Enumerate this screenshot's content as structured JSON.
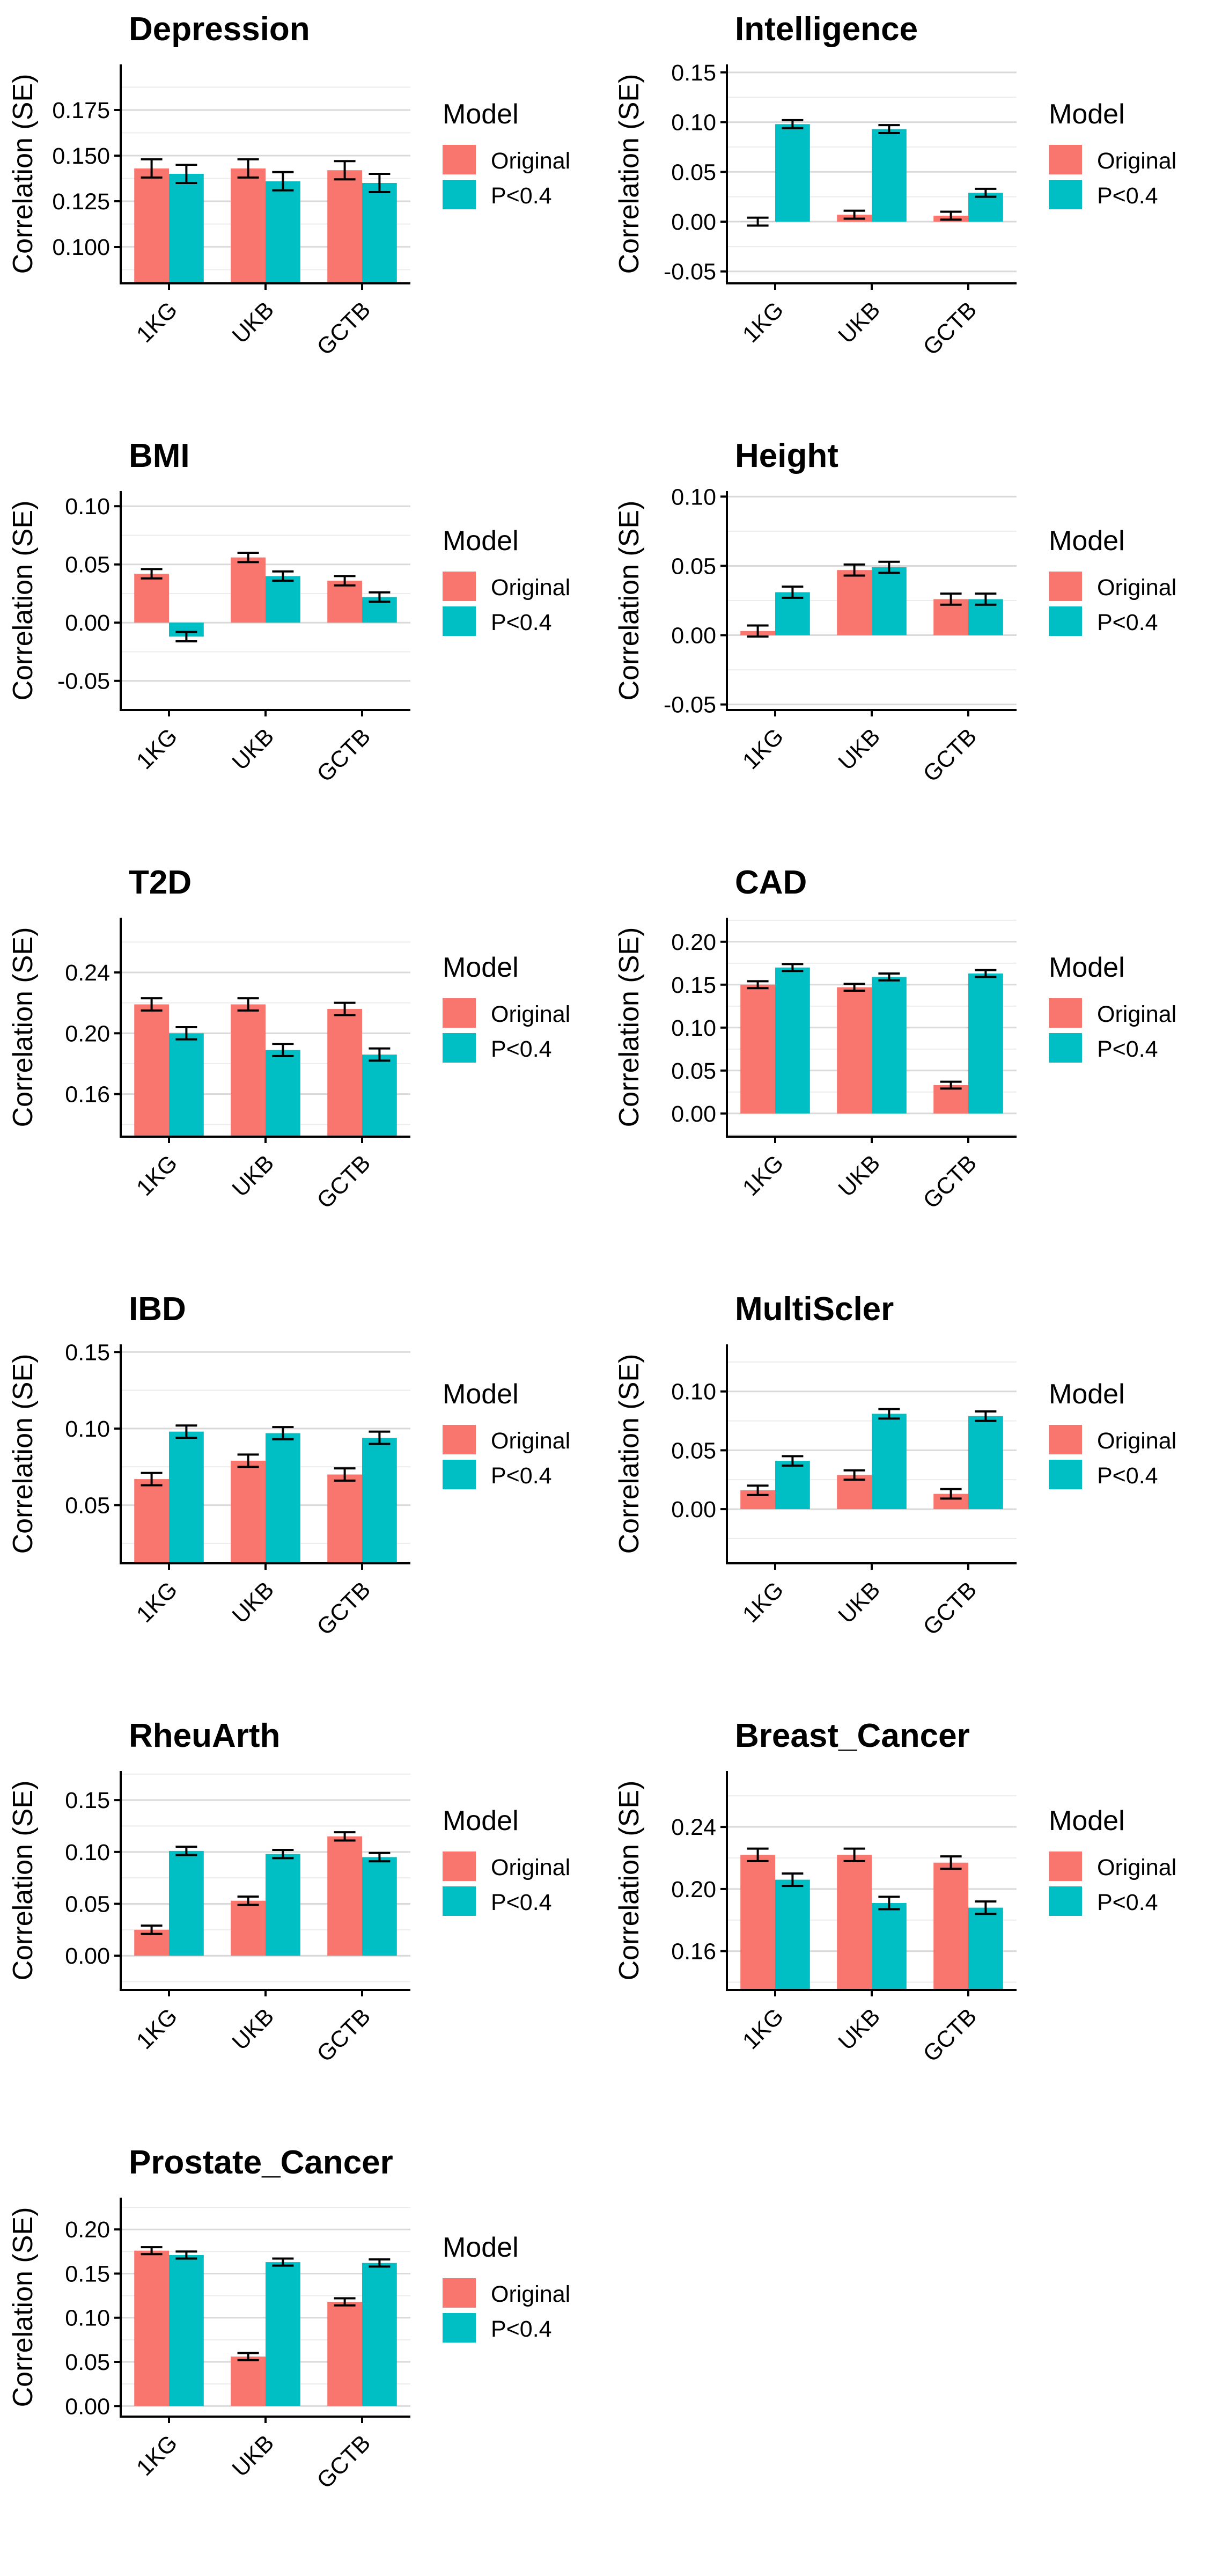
{
  "legend": {
    "title": "Model",
    "items": [
      "Original",
      "P<0.4"
    ]
  },
  "colors": {
    "original": "#F8766D",
    "p04": "#00BFC4",
    "grid": "#d9d9d9",
    "axis": "#000000"
  },
  "chart_data": [
    {
      "type": "bar",
      "title": "Depression",
      "ylabel": "Correlation (SE)",
      "categories": [
        "1KG",
        "UKB",
        "GCTB"
      ],
      "series": [
        {
          "name": "Original",
          "values": [
            0.143,
            0.143,
            0.142
          ],
          "se": [
            0.005,
            0.005,
            0.005
          ]
        },
        {
          "name": "P<0.4",
          "values": [
            0.14,
            0.136,
            0.135
          ],
          "se": [
            0.005,
            0.005,
            0.005
          ]
        }
      ],
      "ylim": [
        0.08,
        0.2
      ],
      "yticks": [
        0.1,
        0.125,
        0.15,
        0.175
      ],
      "ytick_labels": [
        "0.100",
        "0.125",
        "0.150",
        "0.175"
      ],
      "grid": true,
      "legend": "right"
    },
    {
      "type": "bar",
      "title": "Intelligence",
      "ylabel": "Correlation (SE)",
      "categories": [
        "1KG",
        "UKB",
        "GCTB"
      ],
      "series": [
        {
          "name": "Original",
          "values": [
            0.0,
            0.007,
            0.006
          ],
          "se": [
            0.004,
            0.004,
            0.004
          ]
        },
        {
          "name": "P<0.4",
          "values": [
            0.098,
            0.093,
            0.029
          ],
          "se": [
            0.004,
            0.004,
            0.004
          ]
        }
      ],
      "ylim": [
        -0.062,
        0.158
      ],
      "yticks": [
        -0.05,
        0.0,
        0.05,
        0.1,
        0.15
      ],
      "ytick_labels": [
        "-0.05",
        "0.00",
        "0.05",
        "0.10",
        "0.15"
      ],
      "grid": true,
      "legend": "right"
    },
    {
      "type": "bar",
      "title": "BMI",
      "ylabel": "Correlation (SE)",
      "categories": [
        "1KG",
        "UKB",
        "GCTB"
      ],
      "series": [
        {
          "name": "Original",
          "values": [
            0.042,
            0.056,
            0.036
          ],
          "se": [
            0.004,
            0.004,
            0.004
          ]
        },
        {
          "name": "P<0.4",
          "values": [
            -0.012,
            0.04,
            0.022
          ],
          "se": [
            0.004,
            0.004,
            0.004
          ]
        }
      ],
      "ylim": [
        -0.075,
        0.113
      ],
      "yticks": [
        -0.05,
        0.0,
        0.05,
        0.1
      ],
      "ytick_labels": [
        "-0.05",
        "0.00",
        "0.05",
        "0.10"
      ],
      "grid": true,
      "legend": "right"
    },
    {
      "type": "bar",
      "title": "Height",
      "ylabel": "Correlation (SE)",
      "categories": [
        "1KG",
        "UKB",
        "GCTB"
      ],
      "series": [
        {
          "name": "Original",
          "values": [
            0.003,
            0.047,
            0.026
          ],
          "se": [
            0.004,
            0.004,
            0.004
          ]
        },
        {
          "name": "P<0.4",
          "values": [
            0.031,
            0.049,
            0.026
          ],
          "se": [
            0.004,
            0.004,
            0.004
          ]
        }
      ],
      "ylim": [
        -0.054,
        0.104
      ],
      "yticks": [
        -0.05,
        0.0,
        0.05,
        0.1
      ],
      "ytick_labels": [
        "-0.05",
        "0.00",
        "0.05",
        "0.10"
      ],
      "grid": true,
      "legend": "right"
    },
    {
      "type": "bar",
      "title": "T2D",
      "ylabel": "Correlation (SE)",
      "categories": [
        "1KG",
        "UKB",
        "GCTB"
      ],
      "series": [
        {
          "name": "Original",
          "values": [
            0.219,
            0.219,
            0.216
          ],
          "se": [
            0.004,
            0.004,
            0.004
          ]
        },
        {
          "name": "P<0.4",
          "values": [
            0.2,
            0.189,
            0.186
          ],
          "se": [
            0.004,
            0.004,
            0.004
          ]
        }
      ],
      "ylim": [
        0.132,
        0.276
      ],
      "yticks": [
        0.16,
        0.2,
        0.24
      ],
      "ytick_labels": [
        "0.16",
        "0.20",
        "0.24"
      ],
      "grid": true,
      "legend": "right"
    },
    {
      "type": "bar",
      "title": "CAD",
      "ylabel": "Correlation (SE)",
      "categories": [
        "1KG",
        "UKB",
        "GCTB"
      ],
      "series": [
        {
          "name": "Original",
          "values": [
            0.15,
            0.147,
            0.033
          ],
          "se": [
            0.004,
            0.004,
            0.004
          ]
        },
        {
          "name": "P<0.4",
          "values": [
            0.17,
            0.159,
            0.163
          ],
          "se": [
            0.004,
            0.004,
            0.004
          ]
        }
      ],
      "ylim": [
        -0.027,
        0.228
      ],
      "yticks": [
        0.0,
        0.05,
        0.1,
        0.15,
        0.2
      ],
      "ytick_labels": [
        "0.00",
        "0.05",
        "0.10",
        "0.15",
        "0.20"
      ],
      "grid": true,
      "legend": "right"
    },
    {
      "type": "bar",
      "title": "IBD",
      "ylabel": "Correlation (SE)",
      "categories": [
        "1KG",
        "UKB",
        "GCTB"
      ],
      "series": [
        {
          "name": "Original",
          "values": [
            0.067,
            0.079,
            0.07
          ],
          "se": [
            0.004,
            0.004,
            0.004
          ]
        },
        {
          "name": "P<0.4",
          "values": [
            0.098,
            0.097,
            0.094
          ],
          "se": [
            0.004,
            0.004,
            0.004
          ]
        }
      ],
      "ylim": [
        0.012,
        0.155
      ],
      "yticks": [
        0.05,
        0.1,
        0.15
      ],
      "ytick_labels": [
        "0.05",
        "0.10",
        "0.15"
      ],
      "grid": true,
      "legend": "right"
    },
    {
      "type": "bar",
      "title": "MultiScler",
      "ylabel": "Correlation (SE)",
      "categories": [
        "1KG",
        "UKB",
        "GCTB"
      ],
      "series": [
        {
          "name": "Original",
          "values": [
            0.016,
            0.029,
            0.013
          ],
          "se": [
            0.004,
            0.004,
            0.004
          ]
        },
        {
          "name": "P<0.4",
          "values": [
            0.041,
            0.081,
            0.079
          ],
          "se": [
            0.004,
            0.004,
            0.004
          ]
        }
      ],
      "ylim": [
        -0.046,
        0.14
      ],
      "yticks": [
        0.0,
        0.05,
        0.1
      ],
      "ytick_labels": [
        "0.00",
        "0.05",
        "0.10"
      ],
      "grid": true,
      "legend": "right"
    },
    {
      "type": "bar",
      "title": "RheuArth",
      "ylabel": "Correlation (SE)",
      "categories": [
        "1KG",
        "UKB",
        "GCTB"
      ],
      "series": [
        {
          "name": "Original",
          "values": [
            0.025,
            0.053,
            0.115
          ],
          "se": [
            0.004,
            0.004,
            0.004
          ]
        },
        {
          "name": "P<0.4",
          "values": [
            0.101,
            0.098,
            0.095
          ],
          "se": [
            0.004,
            0.004,
            0.004
          ]
        }
      ],
      "ylim": [
        -0.033,
        0.178
      ],
      "yticks": [
        0.0,
        0.05,
        0.1,
        0.15
      ],
      "ytick_labels": [
        "0.00",
        "0.05",
        "0.10",
        "0.15"
      ],
      "grid": true,
      "legend": "right"
    },
    {
      "type": "bar",
      "title": "Breast_Cancer",
      "ylabel": "Correlation (SE)",
      "categories": [
        "1KG",
        "UKB",
        "GCTB"
      ],
      "series": [
        {
          "name": "Original",
          "values": [
            0.222,
            0.222,
            0.217
          ],
          "se": [
            0.004,
            0.004,
            0.004
          ]
        },
        {
          "name": "P<0.4",
          "values": [
            0.206,
            0.191,
            0.188
          ],
          "se": [
            0.004,
            0.004,
            0.004
          ]
        }
      ],
      "ylim": [
        0.135,
        0.276
      ],
      "yticks": [
        0.16,
        0.2,
        0.24
      ],
      "ytick_labels": [
        "0.16",
        "0.20",
        "0.24"
      ],
      "grid": true,
      "legend": "right"
    },
    {
      "type": "bar",
      "title": "Prostate_Cancer",
      "ylabel": "Correlation (SE)",
      "categories": [
        "1KG",
        "UKB",
        "GCTB"
      ],
      "series": [
        {
          "name": "Original",
          "values": [
            0.176,
            0.056,
            0.118
          ],
          "se": [
            0.004,
            0.004,
            0.004
          ]
        },
        {
          "name": "P<0.4",
          "values": [
            0.171,
            0.163,
            0.162
          ],
          "se": [
            0.004,
            0.004,
            0.004
          ]
        }
      ],
      "ylim": [
        -0.012,
        0.236
      ],
      "yticks": [
        0.0,
        0.05,
        0.1,
        0.15,
        0.2
      ],
      "ytick_labels": [
        "0.00",
        "0.05",
        "0.10",
        "0.15",
        "0.20"
      ],
      "grid": true,
      "legend": "right"
    }
  ]
}
